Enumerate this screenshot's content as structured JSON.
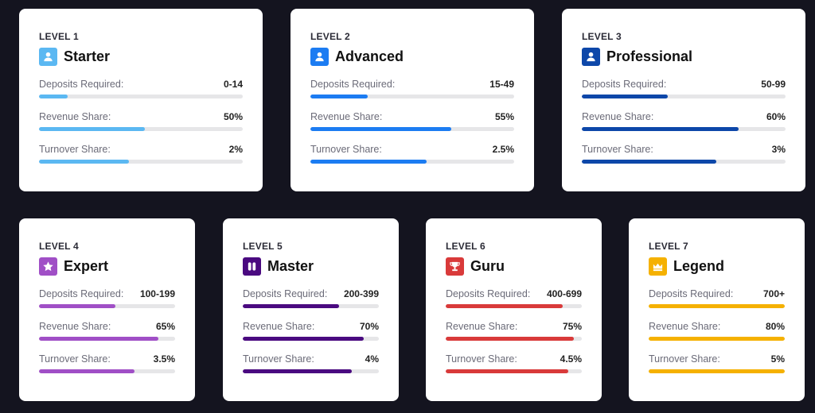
{
  "labels": {
    "deposits": "Deposits Required:",
    "revenue": "Revenue Share:",
    "turnover": "Turnover Share:"
  },
  "levels": [
    {
      "level": "LEVEL 1",
      "name": "Starter",
      "icon": "user-icon",
      "color": "#5bb8f2",
      "deposits": "0-14",
      "revenue": "50%",
      "turnover": "2%",
      "fills": [
        14,
        52,
        44
      ]
    },
    {
      "level": "LEVEL 2",
      "name": "Advanced",
      "icon": "user-icon",
      "color": "#1c7cf2",
      "deposits": "15-49",
      "revenue": "55%",
      "turnover": "2.5%",
      "fills": [
        28,
        69,
        57
      ]
    },
    {
      "level": "LEVEL 3",
      "name": "Professional",
      "icon": "user-icon",
      "color": "#0d47a9",
      "deposits": "50-99",
      "revenue": "60%",
      "turnover": "3%",
      "fills": [
        42,
        77,
        66
      ]
    },
    {
      "level": "LEVEL 4",
      "name": "Expert",
      "icon": "star-icon",
      "color": "#a04fc6",
      "deposits": "100-199",
      "revenue": "65%",
      "turnover": "3.5%",
      "fills": [
        56,
        88,
        70
      ]
    },
    {
      "level": "LEVEL 5",
      "name": "Master",
      "icon": "pause-icon",
      "color": "#4a0a80",
      "deposits": "200-399",
      "revenue": "70%",
      "turnover": "4%",
      "fills": [
        71,
        89,
        80
      ]
    },
    {
      "level": "LEVEL 6",
      "name": "Guru",
      "icon": "trophy-icon",
      "color": "#d93a3a",
      "deposits": "400-699",
      "revenue": "75%",
      "turnover": "4.5%",
      "fills": [
        86,
        94,
        90
      ]
    },
    {
      "level": "LEVEL 7",
      "name": "Legend",
      "icon": "crown-icon",
      "color": "#f5b100",
      "deposits": "700+",
      "revenue": "80%",
      "turnover": "5%",
      "fills": [
        100,
        100,
        100
      ]
    }
  ]
}
